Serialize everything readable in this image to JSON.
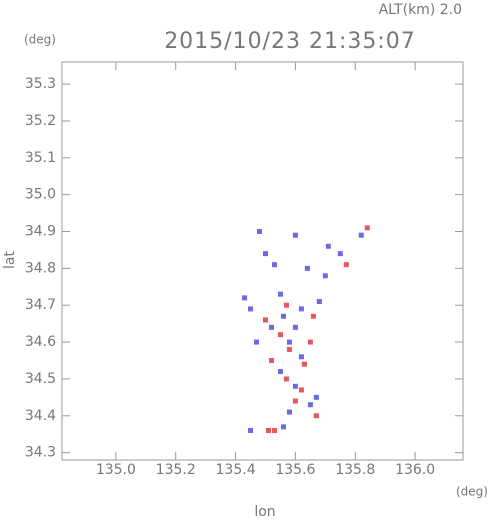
{
  "chart_data": {
    "type": "scatter",
    "title": "2015/10/23 21:35:07",
    "subtitle": "ALT(km) 2.0",
    "y_unit": "(deg)",
    "x_unit": "(deg)",
    "xlabel": "lon",
    "ylabel": "lat",
    "xlim": [
      134.82,
      136.16
    ],
    "ylim": [
      34.28,
      35.36
    ],
    "xticks": [
      {
        "value": 135,
        "label": "135.0"
      },
      135.2,
      135.4,
      135.6,
      135.8,
      {
        "value": 136,
        "label": "136.0"
      }
    ],
    "yticks": [
      34.3,
      34.4,
      34.5,
      34.6,
      34.7,
      34.8,
      34.9,
      {
        "value": 35,
        "label": "35.0"
      },
      35.1,
      35.2,
      35.3
    ],
    "series": [
      {
        "color": "#e8555a",
        "x": [
          135.51,
          135.53,
          135.67,
          135.6,
          135.62,
          135.57,
          135.63,
          135.58,
          135.55,
          135.5,
          135.57,
          135.66,
          135.77,
          135.84,
          135.52,
          135.65
        ],
        "y": [
          34.36,
          34.36,
          34.4,
          34.44,
          34.47,
          34.5,
          34.54,
          34.58,
          34.62,
          34.66,
          34.7,
          34.67,
          34.81,
          34.91,
          34.55,
          34.6
        ]
      },
      {
        "color": "#6a6ae8",
        "x": [
          135.45,
          135.56,
          135.58,
          135.65,
          135.6,
          135.55,
          135.62,
          135.47,
          135.52,
          135.6,
          135.45,
          135.62,
          135.68,
          135.55,
          135.43,
          135.5,
          135.53,
          135.48,
          135.6,
          135.64,
          135.7,
          135.71,
          135.75,
          135.82,
          135.67,
          135.58,
          135.56
        ],
        "y": [
          34.36,
          34.37,
          34.41,
          34.43,
          34.48,
          34.52,
          34.56,
          34.6,
          34.64,
          34.64,
          34.69,
          34.69,
          34.71,
          34.73,
          34.72,
          34.84,
          34.81,
          34.9,
          34.89,
          34.8,
          34.78,
          34.86,
          34.84,
          34.89,
          34.45,
          34.6,
          34.67
        ]
      }
    ]
  }
}
